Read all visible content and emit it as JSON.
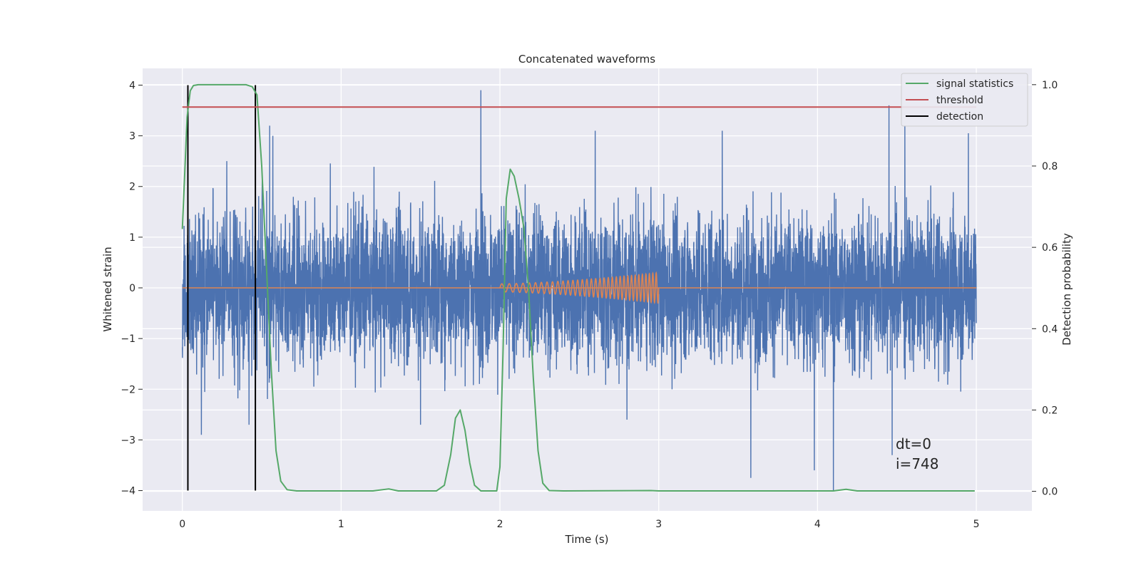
{
  "chart_data": {
    "type": "line",
    "title": "Concatenated waveforms",
    "xlabel": "Time (s)",
    "ylabel": "Whitened strain",
    "y2label": "Detection probability",
    "xlim": [
      -0.25,
      5.35
    ],
    "ylim": [
      -4.4,
      4.33
    ],
    "y2lim": [
      -0.048,
      1.04
    ],
    "xticks": [
      0,
      1,
      2,
      3,
      4,
      5
    ],
    "yticks": [
      -4,
      -3,
      -2,
      -1,
      0,
      1,
      2,
      3,
      4
    ],
    "y2ticks": [
      0.0,
      0.2,
      0.4,
      0.6,
      0.8,
      1.0
    ],
    "y2ticklabels": [
      "0.0",
      "0.2",
      "0.4",
      "0.6",
      "0.8",
      "1.0"
    ],
    "grid": true,
    "legend_position": "top-right",
    "colors": {
      "strain": "#4c72b0",
      "waveform": "#dd8452",
      "signal": "#55a868",
      "threshold": "#c44e52",
      "detection": "#000000",
      "background": "#eaeaf2"
    },
    "series": [
      {
        "name": "",
        "axis": "left",
        "description_key": "whitened strain noise",
        "x_range": [
          0,
          5
        ],
        "typical_amplitude": 1.0,
        "spikes": [
          {
            "x": 0.28,
            "y": 2.5
          },
          {
            "x": 0.55,
            "y": 3.2
          },
          {
            "x": 0.57,
            "y": 3.0
          },
          {
            "x": 1.88,
            "y": 3.9
          },
          {
            "x": 2.6,
            "y": 3.1
          },
          {
            "x": 3.4,
            "y": 3.1
          },
          {
            "x": 4.45,
            "y": 3.6
          },
          {
            "x": 4.55,
            "y": 3.2
          },
          {
            "x": 4.95,
            "y": 3.05
          },
          {
            "x": 0.12,
            "y": -2.9
          },
          {
            "x": 0.42,
            "y": -2.7
          },
          {
            "x": 1.5,
            "y": -2.7
          },
          {
            "x": 2.8,
            "y": -2.6
          },
          {
            "x": 3.58,
            "y": -3.75
          },
          {
            "x": 3.98,
            "y": -3.6
          },
          {
            "x": 4.1,
            "y": -4.0
          },
          {
            "x": 4.47,
            "y": -3.3
          }
        ]
      },
      {
        "name": "",
        "axis": "left",
        "description_key": "injected chirp waveform",
        "x_range": [
          2.0,
          3.0
        ],
        "amplitude_start": 0.08,
        "amplitude_end": 0.3,
        "cycles": 34
      },
      {
        "name": "signal statistics",
        "axis": "right",
        "points": [
          [
            0.0,
            0.645
          ],
          [
            0.015,
            0.78
          ],
          [
            0.03,
            0.92
          ],
          [
            0.05,
            0.985
          ],
          [
            0.07,
            0.998
          ],
          [
            0.1,
            1.0
          ],
          [
            0.4,
            1.0
          ],
          [
            0.44,
            0.995
          ],
          [
            0.47,
            0.975
          ],
          [
            0.5,
            0.8
          ],
          [
            0.53,
            0.55
          ],
          [
            0.56,
            0.3
          ],
          [
            0.59,
            0.1
          ],
          [
            0.62,
            0.025
          ],
          [
            0.66,
            0.004
          ],
          [
            0.72,
            0.001
          ],
          [
            1.2,
            0.001
          ],
          [
            1.3,
            0.006
          ],
          [
            1.36,
            0.001
          ],
          [
            1.6,
            0.001
          ],
          [
            1.65,
            0.015
          ],
          [
            1.69,
            0.09
          ],
          [
            1.72,
            0.18
          ],
          [
            1.75,
            0.2
          ],
          [
            1.78,
            0.15
          ],
          [
            1.81,
            0.07
          ],
          [
            1.84,
            0.015
          ],
          [
            1.88,
            0.001
          ],
          [
            1.98,
            0.001
          ],
          [
            2.0,
            0.06
          ],
          [
            2.02,
            0.35
          ],
          [
            2.04,
            0.72
          ],
          [
            2.065,
            0.792
          ],
          [
            2.09,
            0.775
          ],
          [
            2.12,
            0.72
          ],
          [
            2.15,
            0.65
          ],
          [
            2.18,
            0.5
          ],
          [
            2.21,
            0.28
          ],
          [
            2.24,
            0.1
          ],
          [
            2.27,
            0.02
          ],
          [
            2.31,
            0.002
          ],
          [
            2.4,
            0.001
          ],
          [
            2.95,
            0.002
          ],
          [
            3.0,
            0.001
          ],
          [
            4.1,
            0.001
          ],
          [
            4.18,
            0.005
          ],
          [
            4.25,
            0.001
          ],
          [
            4.99,
            0.001
          ]
        ]
      },
      {
        "name": "threshold",
        "axis": "right",
        "y": 0.945,
        "x_range": [
          0,
          5
        ]
      },
      {
        "name": "detection",
        "axis": "left",
        "lines": [
          {
            "x": 0.035,
            "y_range": [
              -4,
              4
            ]
          },
          {
            "x": 0.46,
            "y_range": [
              -4,
              4
            ]
          }
        ]
      }
    ],
    "legend": [
      "signal statistics",
      "threshold",
      "detection"
    ],
    "annotations": [
      "dt=0",
      "i=748"
    ]
  }
}
